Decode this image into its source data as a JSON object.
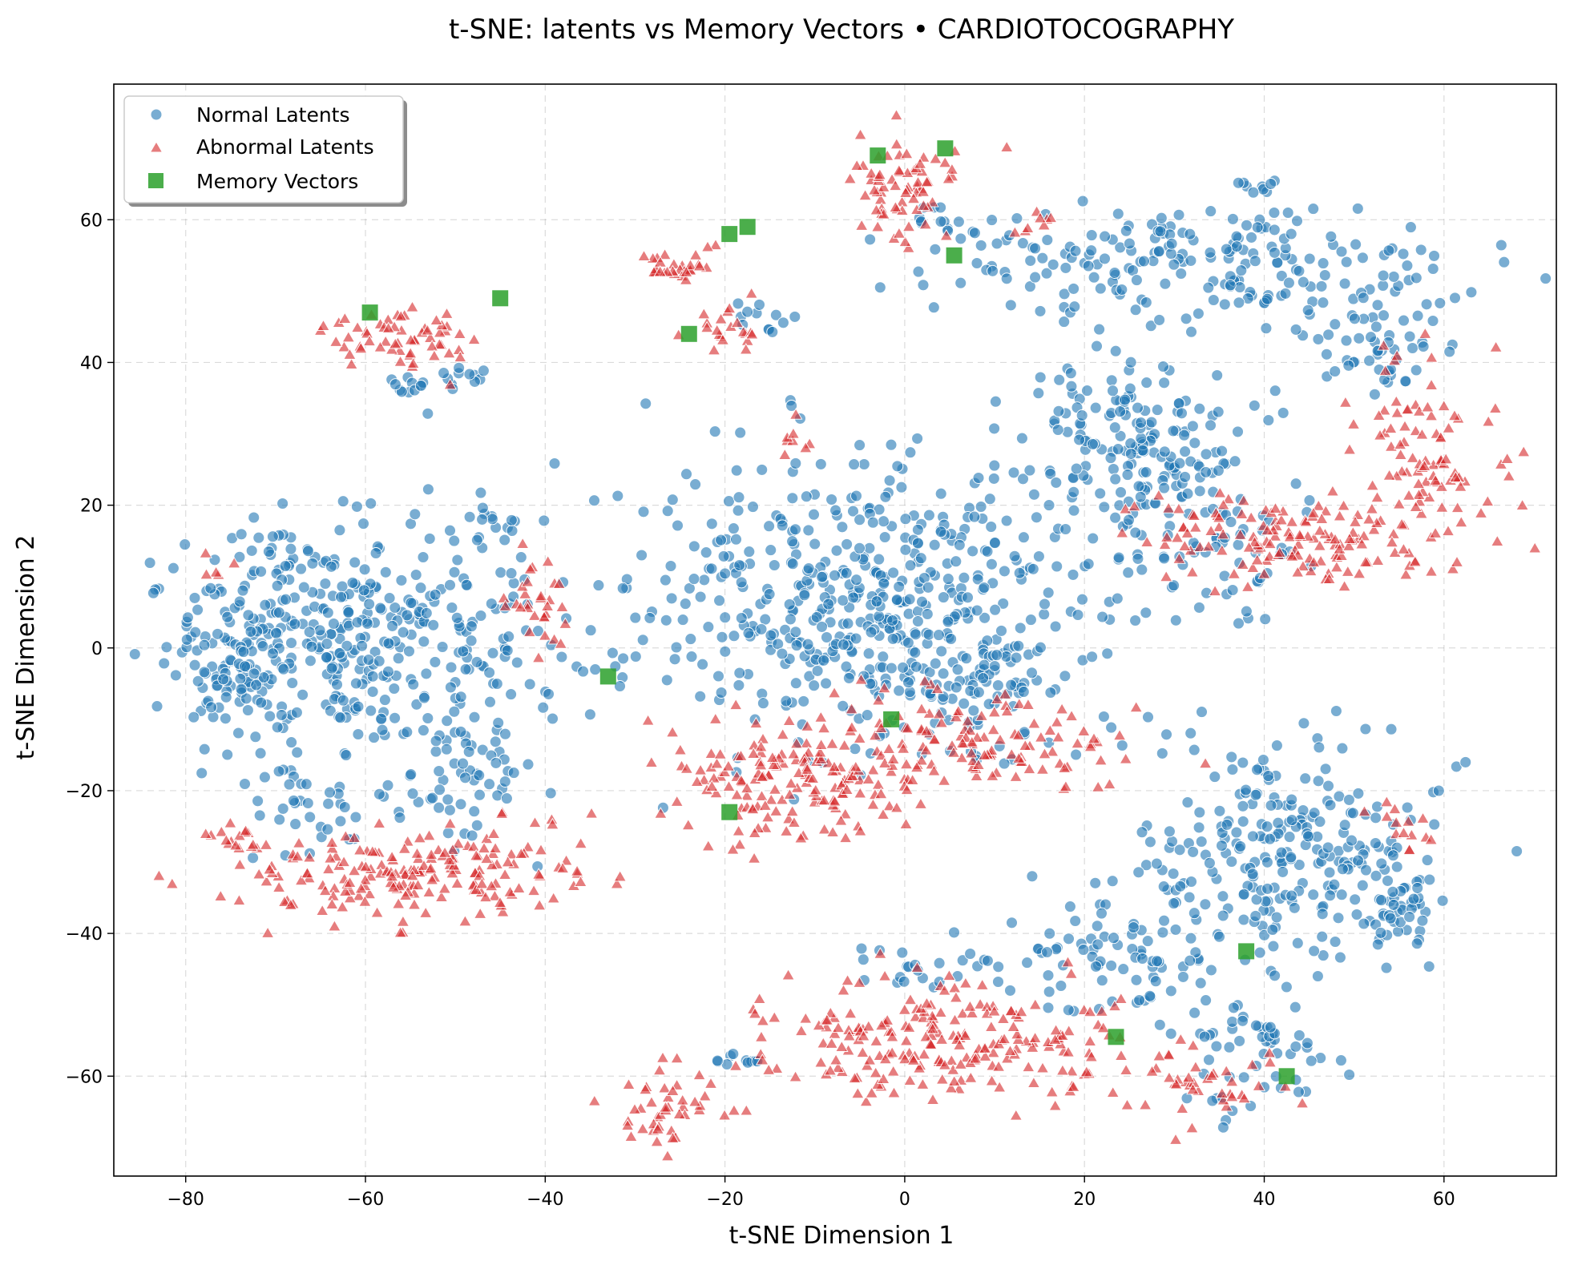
{
  "chart_data": {
    "type": "scatter",
    "title": "t-SNE: latents vs Memory Vectors • CARDIOTOCOGRAPHY",
    "xlabel": "t-SNE Dimension 1",
    "ylabel": "t-SNE Dimension 2",
    "xlim": [
      -88,
      72.5
    ],
    "ylim": [
      -74,
      79
    ],
    "x_ticks": [
      -80,
      -60,
      -40,
      -20,
      0,
      20,
      40,
      60
    ],
    "y_ticks": [
      -60,
      -40,
      -20,
      0,
      20,
      40,
      60
    ],
    "x_tick_labels": [
      "−80",
      "−60",
      "−40",
      "−20",
      "0",
      "20",
      "40",
      "60"
    ],
    "y_tick_labels": [
      "−60",
      "−40",
      "−20",
      "0",
      "20",
      "40",
      "60"
    ],
    "grid": true,
    "legend_position": "top-left",
    "series": [
      {
        "name": "Normal Latents",
        "marker": "circle",
        "color": "#1f77b4",
        "clusters": [
          {
            "cx": -62,
            "cy": 2,
            "sx": 11,
            "sy": 8,
            "n": 420
          },
          {
            "cx": -74,
            "cy": -3,
            "sx": 3,
            "sy": 4,
            "n": 50
          },
          {
            "cx": -47,
            "cy": -17,
            "sx": 4,
            "sy": 6,
            "n": 60
          },
          {
            "cx": -66,
            "cy": -21,
            "sx": 4,
            "sy": 4,
            "n": 40
          },
          {
            "cx": -4,
            "cy": 6,
            "sx": 12,
            "sy": 10,
            "n": 520
          },
          {
            "cx": 10,
            "cy": -6,
            "sx": 5,
            "sy": 5,
            "n": 60
          },
          {
            "cx": 32,
            "cy": 54,
            "sx": 14,
            "sy": 4,
            "n": 200
          },
          {
            "cx": 52,
            "cy": 44,
            "sx": 4,
            "sy": 6,
            "n": 70
          },
          {
            "cx": 26,
            "cy": 28,
            "sx": 6,
            "sy": 6,
            "n": 190
          },
          {
            "cx": 35,
            "cy": 12,
            "sx": 5,
            "sy": 4,
            "n": 50
          },
          {
            "cx": 43,
            "cy": -29,
            "sx": 8,
            "sy": 8,
            "n": 260
          },
          {
            "cx": 24,
            "cy": -43,
            "sx": 6,
            "sy": 4,
            "n": 80
          },
          {
            "cx": 39,
            "cy": -57,
            "sx": 4,
            "sy": 4,
            "n": 60
          },
          {
            "cx": 55,
            "cy": -36,
            "sx": 2,
            "sy": 3,
            "n": 30
          },
          {
            "cx": 5,
            "cy": -45,
            "sx": 6,
            "sy": 2,
            "n": 25
          },
          {
            "cx": -54,
            "cy": 37,
            "sx": 2,
            "sy": 1,
            "n": 12
          },
          {
            "cx": -49,
            "cy": 38,
            "sx": 2,
            "sy": 1.5,
            "n": 10
          },
          {
            "cx": -16,
            "cy": 46,
            "sx": 1.5,
            "sy": 1.5,
            "n": 12
          },
          {
            "cx": -19,
            "cy": -58,
            "sx": 2,
            "sy": 1,
            "n": 10
          },
          {
            "cx": 4,
            "cy": 60,
            "sx": 3,
            "sy": 3,
            "n": 14
          },
          {
            "cx": 40,
            "cy": 64,
            "sx": 1.5,
            "sy": 1,
            "n": 8
          },
          {
            "cx": -45,
            "cy": 18,
            "sx": 3,
            "sy": 2,
            "n": 15
          }
        ]
      },
      {
        "name": "Abnormal Latents",
        "marker": "triangle",
        "color": "#d62728",
        "clusters": [
          {
            "cx": -55,
            "cy": -32,
            "sx": 10,
            "sy": 3,
            "n": 200
          },
          {
            "cx": -74,
            "cy": -27,
            "sx": 1.5,
            "sy": 1,
            "n": 14
          },
          {
            "cx": -41,
            "cy": 7,
            "sx": 2,
            "sy": 3,
            "n": 30
          },
          {
            "cx": -75,
            "cy": 12,
            "sx": 1.5,
            "sy": 1,
            "n": 5
          },
          {
            "cx": -12,
            "cy": -18,
            "sx": 8,
            "sy": 4,
            "n": 170
          },
          {
            "cx": 7,
            "cy": -14,
            "sx": 8,
            "sy": 4,
            "n": 120
          },
          {
            "cx": -55,
            "cy": 43,
            "sx": 4,
            "sy": 2,
            "n": 60
          },
          {
            "cx": -25,
            "cy": 53,
            "sx": 2.5,
            "sy": 1.5,
            "n": 30
          },
          {
            "cx": -20,
            "cy": 45,
            "sx": 2,
            "sy": 1.5,
            "n": 20
          },
          {
            "cx": 0,
            "cy": 65,
            "sx": 3,
            "sy": 4,
            "n": 70
          },
          {
            "cx": 45,
            "cy": 15,
            "sx": 9,
            "sy": 3,
            "n": 150
          },
          {
            "cx": 58,
            "cy": 28,
            "sx": 4,
            "sy": 7,
            "n": 90
          },
          {
            "cx": 5,
            "cy": -55,
            "sx": 10,
            "sy": 4,
            "n": 230
          },
          {
            "cx": 33,
            "cy": -62,
            "sx": 5,
            "sy": 3,
            "n": 40
          },
          {
            "cx": -26,
            "cy": -64,
            "sx": 3,
            "sy": 2.5,
            "n": 45
          },
          {
            "cx": 55,
            "cy": -26,
            "sx": 2,
            "sy": 2,
            "n": 14
          },
          {
            "cx": -13,
            "cy": 30,
            "sx": 1,
            "sy": 1.5,
            "n": 8
          },
          {
            "cx": 14,
            "cy": 60,
            "sx": 2,
            "sy": 1.5,
            "n": 8
          }
        ]
      },
      {
        "name": "Memory Vectors",
        "marker": "square",
        "color": "#2ca02c",
        "x": [
          -59.5,
          -45,
          -19.5,
          -17.5,
          -24,
          -3,
          4.5,
          5.5,
          -33,
          -1.5,
          -19.5,
          38,
          23.5,
          42.5
        ],
        "y": [
          47,
          49,
          58,
          59,
          44,
          69,
          70,
          55,
          -4,
          -10,
          -23,
          -42.5,
          -54.5,
          -60
        ]
      }
    ]
  }
}
